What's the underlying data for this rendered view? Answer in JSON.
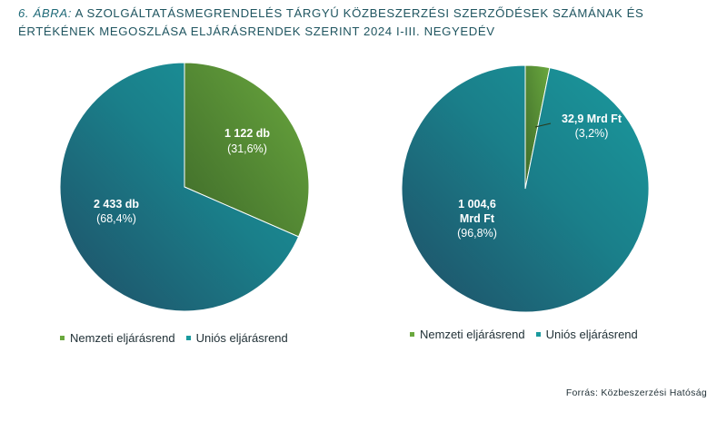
{
  "title": {
    "prefix": "6. ábra:",
    "text": "A szolgáltatásmegrendelés tárgyú közbeszerzési szerződések számának és értékének megoszlása eljárásrendek szerint 2024 I-III. negyedév"
  },
  "colors": {
    "nemzeti_light": "#6aa83e",
    "nemzeti_dark": "#3f6b2a",
    "unios_light": "#1a9a9e",
    "unios_dark": "#1f4e66"
  },
  "chart_data": [
    {
      "type": "pie",
      "categories": [
        "Nemzeti eljárásrend",
        "Uniós eljárásrend"
      ],
      "values": [
        1122,
        2433
      ],
      "value_labels": [
        "1 122 db",
        "2 433 db"
      ],
      "percent_labels": [
        "(31,6%)",
        "(68,4%)"
      ],
      "percents": [
        31.6,
        68.4
      ],
      "legend": [
        "Nemzeti eljárásrend",
        "Uniós eljárásrend"
      ]
    },
    {
      "type": "pie",
      "categories": [
        "Nemzeti eljárásrend",
        "Uniós eljárásrend"
      ],
      "values": [
        32.9,
        1004.6
      ],
      "value_labels": [
        "32,9 Mrd Ft",
        "1 004,6 Mrd Ft"
      ],
      "percent_labels": [
        "(3,2%)",
        "(96,8%)"
      ],
      "percents": [
        3.2,
        96.8
      ],
      "legend": [
        "Nemzeti eljárásrend",
        "Uniós eljárásrend"
      ]
    }
  ],
  "source": "Forrás: Közbeszerzési  Hatóság"
}
